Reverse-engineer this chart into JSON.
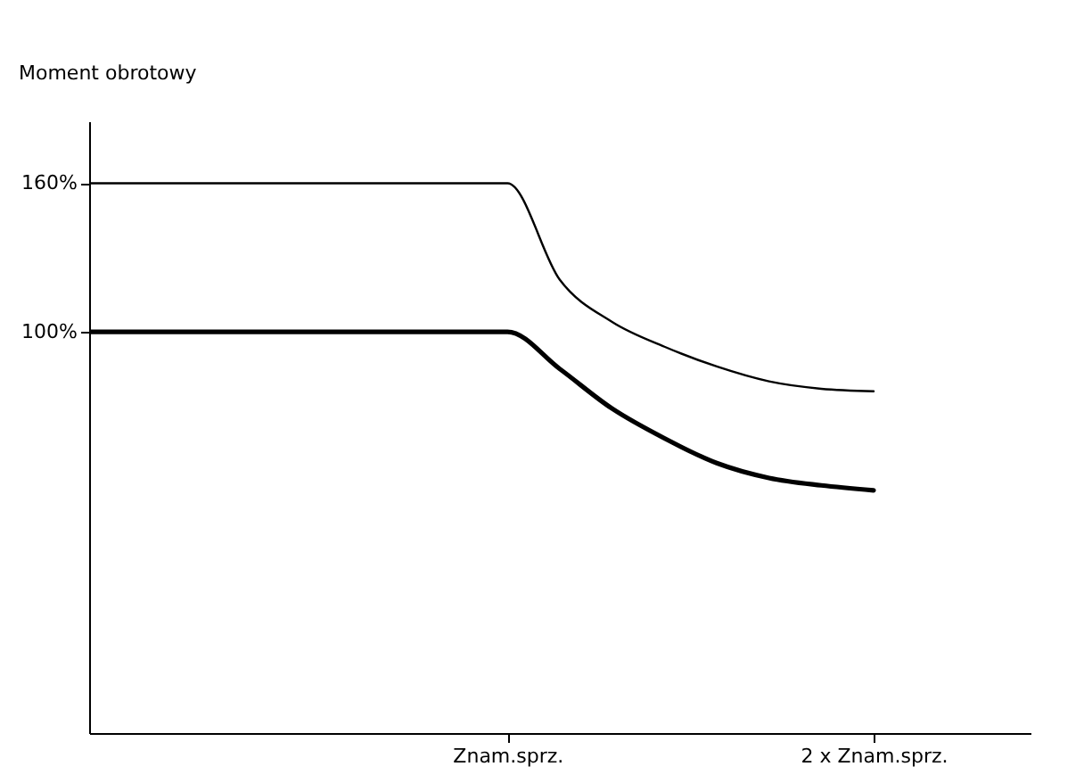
{
  "chart_data": {
    "type": "line",
    "ylabel": "Moment obrotowy",
    "categories": [
      null,
      null,
      null,
      null,
      null,
      null,
      null,
      null,
      "Znam.sprz.",
      null,
      null,
      null,
      null,
      null,
      null,
      "2 x Znam.sprz.",
      null,
      null,
      null
    ],
    "ylim": [
      -62,
      185
    ],
    "yticks": [
      {
        "value": 100,
        "label": "100%"
      },
      {
        "value": 160,
        "label": "160%"
      }
    ],
    "series": [
      {
        "color": "#000000",
        "values": [
          160,
          160,
          160,
          160,
          160,
          160,
          160,
          160,
          160,
          121,
          104,
          94,
          86,
          80,
          77,
          76,
          null,
          null,
          null
        ]
      },
      {
        "color": "#000000",
        "values": [
          100,
          100,
          100,
          100,
          100,
          100,
          100,
          100,
          100,
          85,
          69,
          57,
          47,
          41,
          38,
          36,
          null,
          null,
          null
        ]
      }
    ],
    "grid": false,
    "marker": "none",
    "line_style": "solid"
  }
}
